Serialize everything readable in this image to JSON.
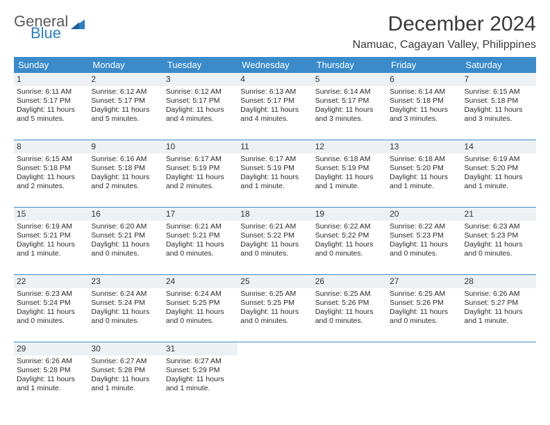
{
  "brand": {
    "top": "General",
    "bottom": "Blue"
  },
  "title": "December 2024",
  "location": "Namuac, Cagayan Valley, Philippines",
  "colors": {
    "header_bg": "#3b8bca",
    "header_fg": "#ffffff",
    "daynum_bg": "#eef1f3",
    "week_divider": "#3b8bca",
    "text": "#2a2a2a",
    "logo_gray": "#5a5a5a",
    "logo_blue": "#2f7fc2"
  },
  "weekdays": [
    "Sunday",
    "Monday",
    "Tuesday",
    "Wednesday",
    "Thursday",
    "Friday",
    "Saturday"
  ],
  "weeks": [
    [
      {
        "n": "1",
        "sr": "Sunrise: 6:11 AM",
        "ss": "Sunset: 5:17 PM",
        "d1": "Daylight: 11 hours",
        "d2": "and 5 minutes."
      },
      {
        "n": "2",
        "sr": "Sunrise: 6:12 AM",
        "ss": "Sunset: 5:17 PM",
        "d1": "Daylight: 11 hours",
        "d2": "and 5 minutes."
      },
      {
        "n": "3",
        "sr": "Sunrise: 6:12 AM",
        "ss": "Sunset: 5:17 PM",
        "d1": "Daylight: 11 hours",
        "d2": "and 4 minutes."
      },
      {
        "n": "4",
        "sr": "Sunrise: 6:13 AM",
        "ss": "Sunset: 5:17 PM",
        "d1": "Daylight: 11 hours",
        "d2": "and 4 minutes."
      },
      {
        "n": "5",
        "sr": "Sunrise: 6:14 AM",
        "ss": "Sunset: 5:17 PM",
        "d1": "Daylight: 11 hours",
        "d2": "and 3 minutes."
      },
      {
        "n": "6",
        "sr": "Sunrise: 6:14 AM",
        "ss": "Sunset: 5:18 PM",
        "d1": "Daylight: 11 hours",
        "d2": "and 3 minutes."
      },
      {
        "n": "7",
        "sr": "Sunrise: 6:15 AM",
        "ss": "Sunset: 5:18 PM",
        "d1": "Daylight: 11 hours",
        "d2": "and 3 minutes."
      }
    ],
    [
      {
        "n": "8",
        "sr": "Sunrise: 6:15 AM",
        "ss": "Sunset: 5:18 PM",
        "d1": "Daylight: 11 hours",
        "d2": "and 2 minutes."
      },
      {
        "n": "9",
        "sr": "Sunrise: 6:16 AM",
        "ss": "Sunset: 5:18 PM",
        "d1": "Daylight: 11 hours",
        "d2": "and 2 minutes."
      },
      {
        "n": "10",
        "sr": "Sunrise: 6:17 AM",
        "ss": "Sunset: 5:19 PM",
        "d1": "Daylight: 11 hours",
        "d2": "and 2 minutes."
      },
      {
        "n": "11",
        "sr": "Sunrise: 6:17 AM",
        "ss": "Sunset: 5:19 PM",
        "d1": "Daylight: 11 hours",
        "d2": "and 1 minute."
      },
      {
        "n": "12",
        "sr": "Sunrise: 6:18 AM",
        "ss": "Sunset: 5:19 PM",
        "d1": "Daylight: 11 hours",
        "d2": "and 1 minute."
      },
      {
        "n": "13",
        "sr": "Sunrise: 6:18 AM",
        "ss": "Sunset: 5:20 PM",
        "d1": "Daylight: 11 hours",
        "d2": "and 1 minute."
      },
      {
        "n": "14",
        "sr": "Sunrise: 6:19 AM",
        "ss": "Sunset: 5:20 PM",
        "d1": "Daylight: 11 hours",
        "d2": "and 1 minute."
      }
    ],
    [
      {
        "n": "15",
        "sr": "Sunrise: 6:19 AM",
        "ss": "Sunset: 5:21 PM",
        "d1": "Daylight: 11 hours",
        "d2": "and 1 minute."
      },
      {
        "n": "16",
        "sr": "Sunrise: 6:20 AM",
        "ss": "Sunset: 5:21 PM",
        "d1": "Daylight: 11 hours",
        "d2": "and 0 minutes."
      },
      {
        "n": "17",
        "sr": "Sunrise: 6:21 AM",
        "ss": "Sunset: 5:21 PM",
        "d1": "Daylight: 11 hours",
        "d2": "and 0 minutes."
      },
      {
        "n": "18",
        "sr": "Sunrise: 6:21 AM",
        "ss": "Sunset: 5:22 PM",
        "d1": "Daylight: 11 hours",
        "d2": "and 0 minutes."
      },
      {
        "n": "19",
        "sr": "Sunrise: 6:22 AM",
        "ss": "Sunset: 5:22 PM",
        "d1": "Daylight: 11 hours",
        "d2": "and 0 minutes."
      },
      {
        "n": "20",
        "sr": "Sunrise: 6:22 AM",
        "ss": "Sunset: 5:23 PM",
        "d1": "Daylight: 11 hours",
        "d2": "and 0 minutes."
      },
      {
        "n": "21",
        "sr": "Sunrise: 6:23 AM",
        "ss": "Sunset: 5:23 PM",
        "d1": "Daylight: 11 hours",
        "d2": "and 0 minutes."
      }
    ],
    [
      {
        "n": "22",
        "sr": "Sunrise: 6:23 AM",
        "ss": "Sunset: 5:24 PM",
        "d1": "Daylight: 11 hours",
        "d2": "and 0 minutes."
      },
      {
        "n": "23",
        "sr": "Sunrise: 6:24 AM",
        "ss": "Sunset: 5:24 PM",
        "d1": "Daylight: 11 hours",
        "d2": "and 0 minutes."
      },
      {
        "n": "24",
        "sr": "Sunrise: 6:24 AM",
        "ss": "Sunset: 5:25 PM",
        "d1": "Daylight: 11 hours",
        "d2": "and 0 minutes."
      },
      {
        "n": "25",
        "sr": "Sunrise: 6:25 AM",
        "ss": "Sunset: 5:25 PM",
        "d1": "Daylight: 11 hours",
        "d2": "and 0 minutes."
      },
      {
        "n": "26",
        "sr": "Sunrise: 6:25 AM",
        "ss": "Sunset: 5:26 PM",
        "d1": "Daylight: 11 hours",
        "d2": "and 0 minutes."
      },
      {
        "n": "27",
        "sr": "Sunrise: 6:25 AM",
        "ss": "Sunset: 5:26 PM",
        "d1": "Daylight: 11 hours",
        "d2": "and 0 minutes."
      },
      {
        "n": "28",
        "sr": "Sunrise: 6:26 AM",
        "ss": "Sunset: 5:27 PM",
        "d1": "Daylight: 11 hours",
        "d2": "and 1 minute."
      }
    ],
    [
      {
        "n": "29",
        "sr": "Sunrise: 6:26 AM",
        "ss": "Sunset: 5:28 PM",
        "d1": "Daylight: 11 hours",
        "d2": "and 1 minute."
      },
      {
        "n": "30",
        "sr": "Sunrise: 6:27 AM",
        "ss": "Sunset: 5:28 PM",
        "d1": "Daylight: 11 hours",
        "d2": "and 1 minute."
      },
      {
        "n": "31",
        "sr": "Sunrise: 6:27 AM",
        "ss": "Sunset: 5:29 PM",
        "d1": "Daylight: 11 hours",
        "d2": "and 1 minute."
      },
      {
        "empty": true
      },
      {
        "empty": true
      },
      {
        "empty": true
      },
      {
        "empty": true
      }
    ]
  ]
}
